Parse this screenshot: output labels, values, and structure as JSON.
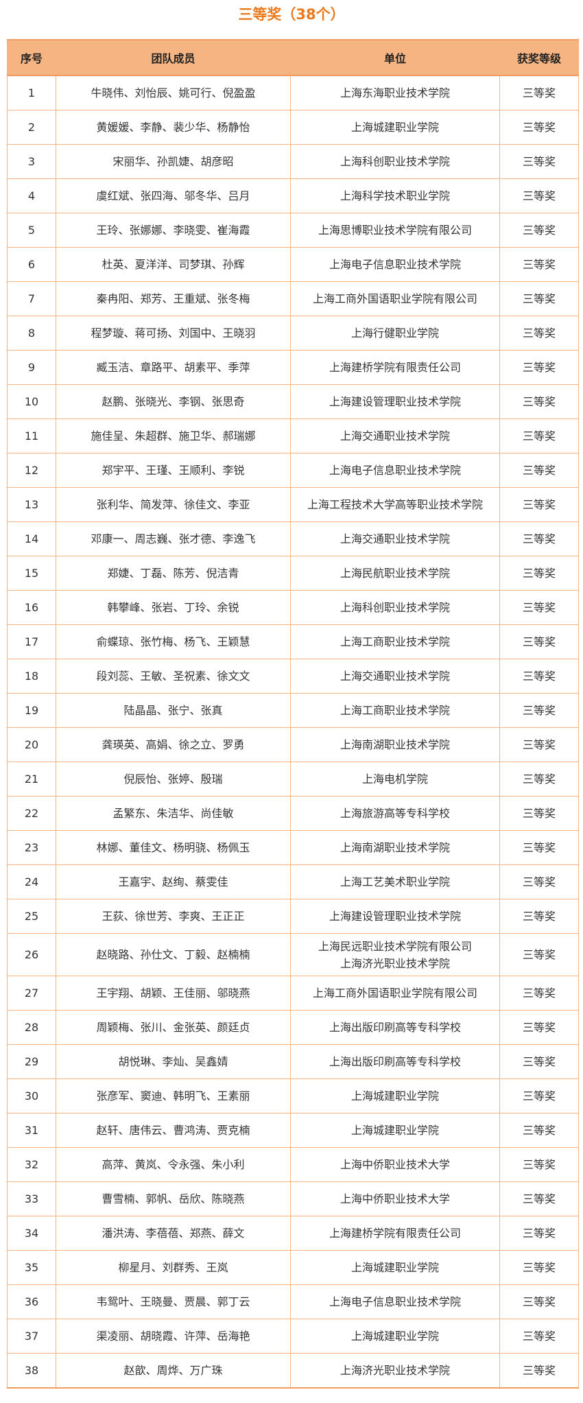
{
  "title": "三等奖（38个）",
  "colors": {
    "accent": "#ec7a1c",
    "header_bg": "#f5b482",
    "border": "#f6b37f",
    "highlight": "#fde9a8"
  },
  "table": {
    "headers": [
      "序号",
      "团队成员",
      "单位",
      "获奖等级"
    ],
    "rows": [
      {
        "no": "1",
        "members": "牛晓伟、刘怡辰、姚可行、倪盈盈",
        "unit": "上海东海职业技术学院",
        "level": "三等奖"
      },
      {
        "no": "2",
        "members": "黄媛媛、李静、裴少华、杨静怡",
        "unit": "上海城建职业学院",
        "level": "三等奖"
      },
      {
        "no": "3",
        "members": "宋丽华、孙凯婕、胡彦昭",
        "unit": "上海科创职业技术学院",
        "level": "三等奖"
      },
      {
        "no": "4",
        "members": "虞红斌、张四海、邬冬华、吕月",
        "unit": "上海科学技术职业学院",
        "level": "三等奖"
      },
      {
        "no": "5",
        "members": "王玲、张娜娜、李晓雯、崔海霞",
        "unit": "上海思博职业技术学院有限公司",
        "level": "三等奖"
      },
      {
        "no": "6",
        "members": "杜英、夏洋洋、司梦琪、孙辉",
        "unit": "上海电子信息职业技术学院",
        "level": "三等奖"
      },
      {
        "no": "7",
        "members": "秦冉阳、郑芳、王重斌、张冬梅",
        "unit": "上海工商外国语职业学院有限公司",
        "level": "三等奖"
      },
      {
        "no": "8",
        "members": "程梦璇、蒋可扬、刘国中、王晓羽",
        "unit": "上海行健职业学院",
        "level": "三等奖"
      },
      {
        "no": "9",
        "members": "臧玉洁、章路平、胡素平、季萍",
        "unit": "上海建桥学院有限责任公司",
        "level": "三等奖"
      },
      {
        "no": "10",
        "members": "赵鹏、张晓光、李钢、张思奇",
        "unit": "上海建设管理职业技术学院",
        "level": "三等奖"
      },
      {
        "no": "11",
        "members": "施佳呈、朱超群、施卫华、郝瑞娜",
        "unit": "上海交通职业技术学院",
        "level": "三等奖"
      },
      {
        "no": "12",
        "members": "郑宇平、王瑾、王顺利、李锐",
        "unit": "上海电子信息职业技术学院",
        "level": "三等奖"
      },
      {
        "no": "13",
        "members": "张利华、简发萍、徐佳文、李亚",
        "unit": "上海工程技术大学高等职业技术学院",
        "level": "三等奖"
      },
      {
        "no": "14",
        "members": "邓康一、周志巍、张才德、李逸飞",
        "unit": "上海交通职业技术学院",
        "level": "三等奖"
      },
      {
        "no": "15",
        "members": "郑婕、丁磊、陈芳、倪洁青",
        "unit": "上海民航职业技术学院",
        "level": "三等奖"
      },
      {
        "no": "16",
        "members": "韩攀峰、张岩、丁玲、余锐",
        "unit": "上海科创职业技术学院",
        "level": "三等奖"
      },
      {
        "no": "17",
        "members": "俞蝶琼、张竹梅、杨飞、王颖慧",
        "unit": "上海工商职业技术学院",
        "level": "三等奖"
      },
      {
        "no": "18",
        "members": "段刘蕊、王敏、圣祝素、徐文文",
        "unit": "上海交通职业技术学院",
        "level": "三等奖"
      },
      {
        "no": "19",
        "members": "陆晶晶、张宁、张真",
        "unit": "上海工商职业技术学院",
        "level": "三等奖"
      },
      {
        "no": "20",
        "members": "龚瑛英、高娟、徐之立、罗勇",
        "unit": "上海南湖职业技术学院",
        "level": "三等奖"
      },
      {
        "no": "21",
        "members": "倪辰怡、张婷、殷瑞",
        "unit": "上海电机学院",
        "level": "三等奖"
      },
      {
        "no": "22",
        "members": "孟繁东、朱洁华、尚佳敏",
        "unit": "上海旅游高等专科学校",
        "level": "三等奖"
      },
      {
        "no": "23",
        "members": "林娜、董佳文、杨明骁、杨佩玉",
        "unit": "上海南湖职业技术学院",
        "level": "三等奖"
      },
      {
        "no": "24",
        "members": "王嘉宇、赵绚、蔡雯佳",
        "unit": "上海工艺美术职业学院",
        "level": "三等奖"
      },
      {
        "no": "25",
        "members": "王荻、徐世芳、李爽、王正正",
        "unit": "上海建设管理职业技术学院",
        "level": "三等奖"
      },
      {
        "no": "26",
        "members": "赵晓路、孙仕文、丁毅、赵楠楠",
        "unit": "上海民远职业技术学院有限公司",
        "unit2": "上海济光职业技术学院",
        "level": "三等奖"
      },
      {
        "no": "27",
        "members": "王宇翔、胡颖、王佳丽、邬晓燕",
        "unit": "上海工商外国语职业学院有限公司",
        "level": "三等奖"
      },
      {
        "no": "28",
        "members": "周颖梅、张川、金张英、颜廷贞",
        "unit": "上海出版印刷高等专科学校",
        "level": "三等奖"
      },
      {
        "no": "29",
        "members": "胡悦琳、李灿、吴鑫婧",
        "unit": "上海出版印刷高等专科学校",
        "level": "三等奖"
      },
      {
        "no": "30",
        "members": "张彦军、窦迪、韩明飞、王素丽",
        "unit": "上海城建职业学院",
        "level": "三等奖"
      },
      {
        "no": "31",
        "members": "赵轩、唐伟云、曹鸿涛、贾克楠",
        "unit": "上海城建职业学院",
        "level": "三等奖"
      },
      {
        "no": "32",
        "members": "高萍、黄岚、令永强、朱小利",
        "unit": "上海中侨职业技术大学",
        "level": "三等奖"
      },
      {
        "no": "33",
        "members": "曹雪楠、郭帆、岳欣、陈晓燕",
        "unit": "上海中侨职业技术大学",
        "level": "三等奖"
      },
      {
        "no": "34",
        "members": "潘洪涛、李蓓蓓、郑燕、薛文",
        "unit": "上海建桥学院有限责任公司",
        "level": "三等奖"
      },
      {
        "no": "35",
        "members": "柳星月、刘群秀、王岚",
        "unit": "上海城建职业学院",
        "level": "三等奖"
      },
      {
        "no": "36",
        "members": "韦鸳叶、王晓曼、贾晨、郭丁云",
        "unit": "上海电子信息职业技术学院",
        "level": "三等奖"
      },
      {
        "no": "37",
        "members": "渠凌丽、胡晓霞、许萍、岳海艳",
        "unit": "上海城建职业学院",
        "level": "三等奖"
      },
      {
        "no": "38",
        "members": "赵歆、周烨、万广珠",
        "unit": "上海济光职业技术学院",
        "level": "三等奖"
      }
    ]
  }
}
